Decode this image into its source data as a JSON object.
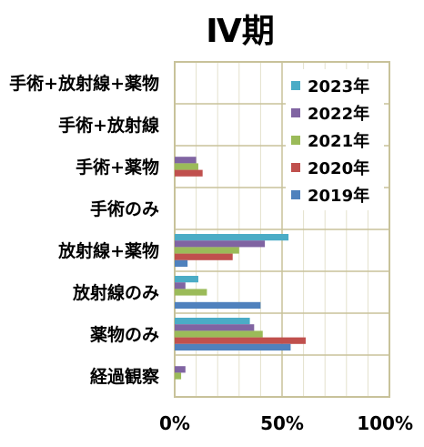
{
  "chart_data": {
    "type": "bar",
    "orientation": "horizontal",
    "title": "Ⅳ期",
    "categories": [
      "手術+放射線+薬物",
      "手術+放射線",
      "手術+薬物",
      "手術のみ",
      "放射線+薬物",
      "放射線のみ",
      "薬物のみ",
      "経過観察"
    ],
    "xlim": [
      0,
      100
    ],
    "x_ticks": [
      "0%",
      "50%",
      "100%"
    ],
    "grid": true,
    "legend_position": "top-right",
    "series": [
      {
        "name": "2023年",
        "color": "#4bacc6",
        "values": [
          0,
          0,
          0,
          0,
          53,
          11,
          35,
          0
        ]
      },
      {
        "name": "2022年",
        "color": "#8064a2",
        "values": [
          0,
          0,
          10,
          0,
          42,
          5,
          37,
          5
        ]
      },
      {
        "name": "2021年",
        "color": "#9bbb59",
        "values": [
          0,
          0,
          11,
          0,
          30,
          15,
          41,
          3
        ]
      },
      {
        "name": "2020年",
        "color": "#c0504d",
        "values": [
          0,
          0,
          13,
          0,
          27,
          0,
          61,
          0
        ]
      },
      {
        "name": "2019年",
        "color": "#4f81bd",
        "values": [
          0,
          0,
          0,
          0,
          6,
          40,
          54,
          0
        ]
      }
    ]
  }
}
